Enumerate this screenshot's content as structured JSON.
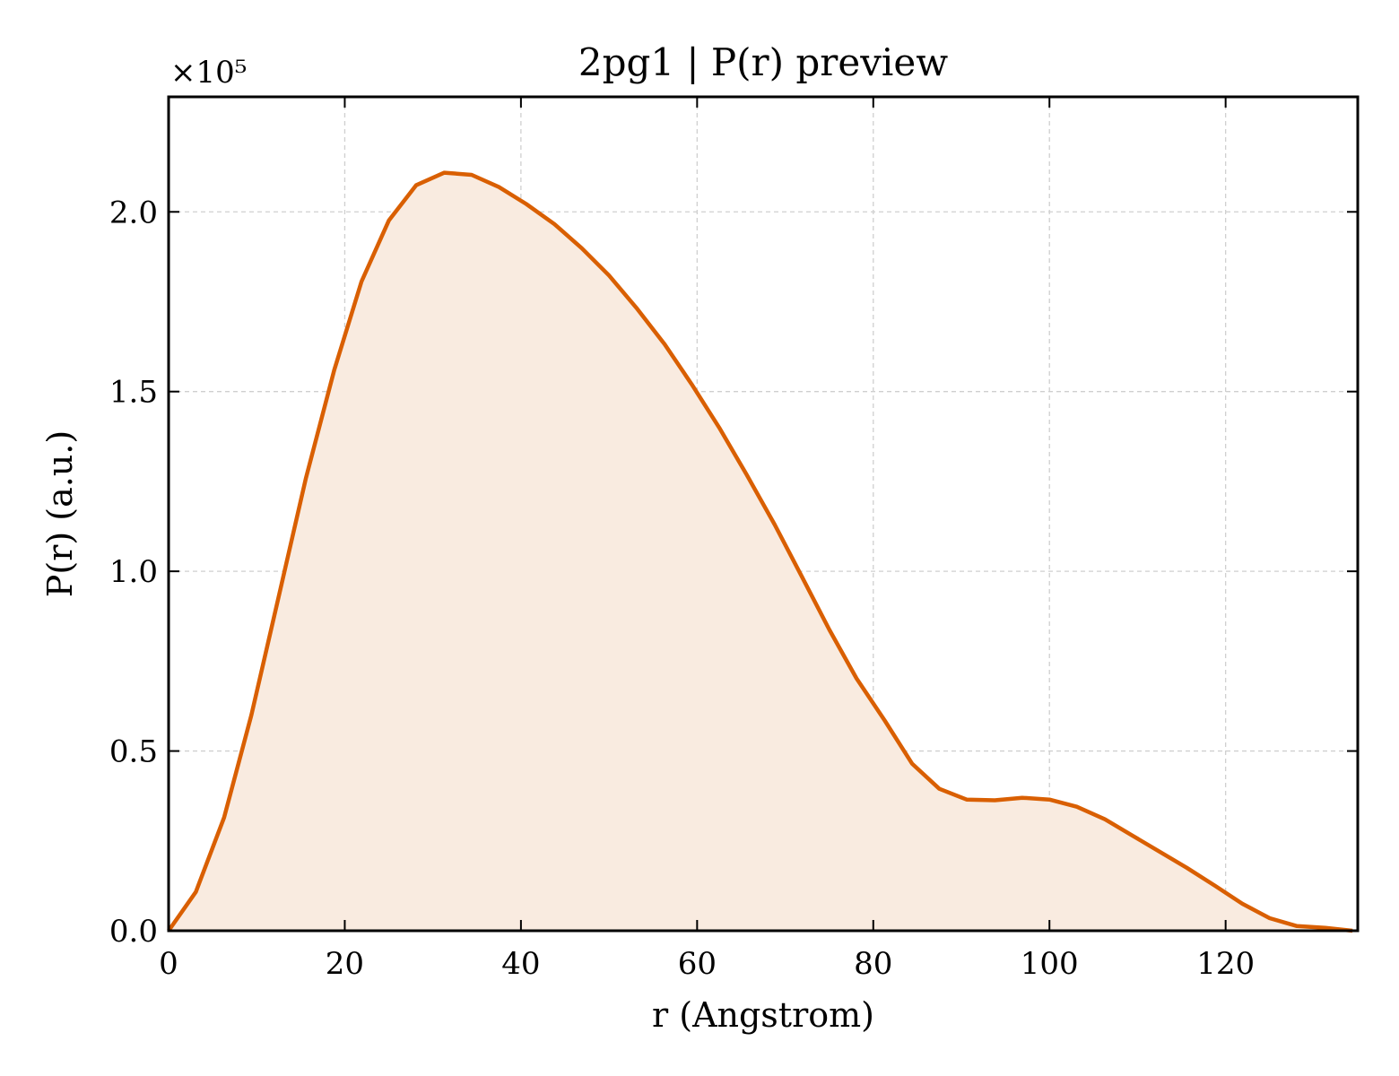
{
  "chart_data": {
    "type": "area",
    "title": "2pg1 | P(r) preview",
    "xlabel": "r (Angstrom)",
    "ylabel": "P(r) (a.u.)",
    "y_multiplier": "×10⁵",
    "xlim": [
      0,
      135
    ],
    "ylim": [
      0,
      2.32
    ],
    "grid": true,
    "grid_style": "dashed",
    "x_ticks": [
      0,
      20,
      40,
      60,
      80,
      100,
      120
    ],
    "x_tick_labels": [
      "0",
      "20",
      "40",
      "60",
      "80",
      "100",
      "120"
    ],
    "y_ticks": [
      0,
      0.5,
      1.0,
      1.5,
      2.0
    ],
    "y_tick_labels": [
      "0.0",
      "0.5",
      "1.0",
      "1.5",
      "2.0"
    ],
    "series": [
      {
        "line_color": "#d95f02",
        "fill_color": "#f9ebe0",
        "x": [
          0,
          3.1,
          6.3,
          9.4,
          12.5,
          15.6,
          18.8,
          21.9,
          25.0,
          28.1,
          31.3,
          34.4,
          37.5,
          40.6,
          43.8,
          46.9,
          50.0,
          53.1,
          56.3,
          59.4,
          62.5,
          65.6,
          68.8,
          71.9,
          75.0,
          78.1,
          81.3,
          84.4,
          87.5,
          90.6,
          93.8,
          96.9,
          100.0,
          103.1,
          106.3,
          109.4,
          112.5,
          115.6,
          118.8,
          121.9,
          125.0,
          128.1,
          131.3,
          134.4
        ],
        "y": [
          0.0,
          0.108,
          0.315,
          0.6,
          0.93,
          1.26,
          1.56,
          1.806,
          1.976,
          2.074,
          2.109,
          2.103,
          2.069,
          2.022,
          1.966,
          1.899,
          1.823,
          1.733,
          1.632,
          1.52,
          1.4,
          1.27,
          1.13,
          0.985,
          0.838,
          0.702,
          0.585,
          0.465,
          0.395,
          0.365,
          0.363,
          0.37,
          0.365,
          0.345,
          0.31,
          0.265,
          0.22,
          0.175,
          0.125,
          0.075,
          0.035,
          0.013,
          0.008,
          0.0
        ]
      }
    ]
  }
}
